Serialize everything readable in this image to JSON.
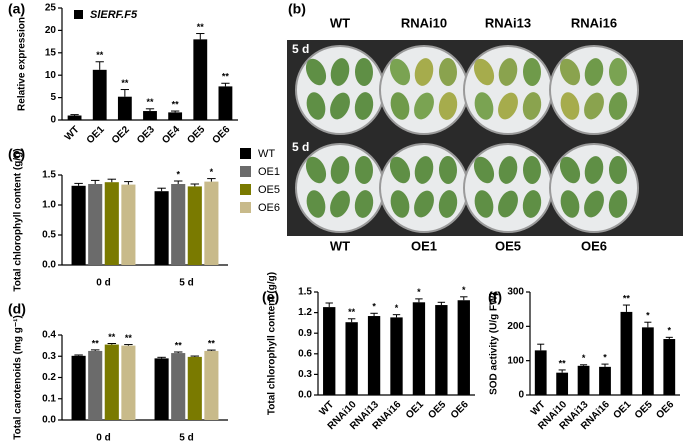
{
  "chart_data": [
    {
      "type": "bar",
      "panel_label": "(a)",
      "ylabel": "Relative expression",
      "categories": [
        "WT",
        "OE1",
        "OE2",
        "OE3",
        "OE4",
        "OE5",
        "OE6"
      ],
      "series": [
        {
          "name": "SlERF.F5",
          "color": "#000000",
          "values": [
            1,
            11.2,
            5.2,
            2.0,
            1.7,
            18.0,
            7.5
          ],
          "errors": [
            0.2,
            1.8,
            1.6,
            0.5,
            0.3,
            1.3,
            0.7
          ],
          "annotations": [
            null,
            "**",
            "**",
            "**",
            "**",
            "**",
            "**"
          ]
        }
      ],
      "ylim": [
        0,
        25
      ],
      "yticks": [
        0,
        5,
        10,
        15,
        20,
        25
      ],
      "legend": "top-left"
    },
    {
      "type": "bar",
      "panel_label": "(c)",
      "ylabel": "Total chlorophyll content (g/g)",
      "categories": [
        "0 d",
        "5 d"
      ],
      "series": [
        {
          "name": "WT",
          "color": "#000000",
          "values": [
            1.32,
            1.23
          ],
          "errors": [
            0.04,
            0.05
          ],
          "annotations": [
            null,
            null
          ]
        },
        {
          "name": "OE1",
          "color": "#6b6b6b",
          "values": [
            1.35,
            1.35
          ],
          "errors": [
            0.06,
            0.05
          ],
          "annotations": [
            null,
            "*"
          ]
        },
        {
          "name": "OE5",
          "color": "#7a7a00",
          "values": [
            1.38,
            1.31
          ],
          "errors": [
            0.05,
            0.04
          ],
          "annotations": [
            null,
            null
          ]
        },
        {
          "name": "OE6",
          "color": "#c8ba8a",
          "values": [
            1.34,
            1.39
          ],
          "errors": [
            0.05,
            0.05
          ],
          "annotations": [
            null,
            "*"
          ]
        }
      ],
      "ylim": [
        0,
        1.5
      ],
      "yticks": [
        {
          "value": 0,
          "label": "0.0"
        },
        0.5,
        {
          "value": 1,
          "label": "1.0"
        },
        1.5
      ],
      "legend": "right"
    },
    {
      "type": "bar",
      "panel_label": "(d)",
      "ylabel": "Total carotenoids (mg g⁻¹)",
      "categories": [
        "0 d",
        "5 d"
      ],
      "series": [
        {
          "color": "#000000",
          "values": [
            0.302,
            0.29
          ],
          "errors": [
            0.004,
            0.005
          ],
          "annotations": [
            null,
            null
          ]
        },
        {
          "color": "#6b6b6b",
          "values": [
            0.325,
            0.315
          ],
          "errors": [
            0.005,
            0.005
          ],
          "annotations": [
            "**",
            "**"
          ]
        },
        {
          "color": "#7a7a00",
          "values": [
            0.355,
            0.297
          ],
          "errors": [
            0.005,
            0.004
          ],
          "annotations": [
            "**",
            null
          ]
        },
        {
          "color": "#c8ba8a",
          "values": [
            0.35,
            0.325
          ],
          "errors": [
            0.005,
            0.004
          ],
          "annotations": [
            "**",
            "**"
          ]
        }
      ],
      "ylim": [
        0,
        0.4
      ],
      "yticks": [
        {
          "value": 0,
          "label": "0.0"
        },
        0.1,
        0.2,
        0.3,
        0.4
      ]
    },
    {
      "type": "bar",
      "panel_label": "(e)",
      "ylabel": "Total chlorophyll content (g/g)",
      "categories": [
        "WT",
        "RNAi10",
        "RNAi13",
        "RNAi16",
        "OE1",
        "OE5",
        "OE6"
      ],
      "series": [
        {
          "color": "#000000",
          "values": [
            1.28,
            1.06,
            1.15,
            1.13,
            1.35,
            1.31,
            1.38
          ],
          "errors": [
            0.06,
            0.05,
            0.04,
            0.04,
            0.05,
            0.04,
            0.05
          ],
          "annotations": [
            null,
            "**",
            "*",
            "*",
            "*",
            null,
            "*"
          ]
        }
      ],
      "ylim": [
        0,
        1.5
      ],
      "yticks": [
        {
          "value": 0,
          "label": "0.0"
        },
        0.3,
        0.6,
        0.9,
        1.2,
        1.5
      ]
    },
    {
      "type": "bar",
      "panel_label": "(f)",
      "ylabel": "SOD activity (U/g FW)",
      "categories": [
        "WT",
        "RNAi10",
        "RNAi13",
        "RNAi16",
        "OE1",
        "OE5",
        "OE6"
      ],
      "series": [
        {
          "color": "#000000",
          "values": [
            130,
            65,
            85,
            82,
            242,
            197,
            163
          ],
          "errors": [
            18,
            8,
            3,
            8,
            20,
            15,
            5
          ],
          "annotations": [
            null,
            "**",
            "*",
            "*",
            "**",
            "*",
            "*"
          ]
        }
      ],
      "ylim": [
        0,
        300
      ],
      "yticks": [
        0,
        100,
        200,
        300
      ]
    }
  ],
  "photo_panel": {
    "panel_label": "(b)",
    "top_labels": [
      "WT",
      "RNAi10",
      "RNAi13",
      "RNAi16"
    ],
    "bottom_labels": [
      "WT",
      "OE1",
      "OE5",
      "OE6"
    ],
    "day_labels": [
      "5 d",
      "5 d"
    ]
  }
}
